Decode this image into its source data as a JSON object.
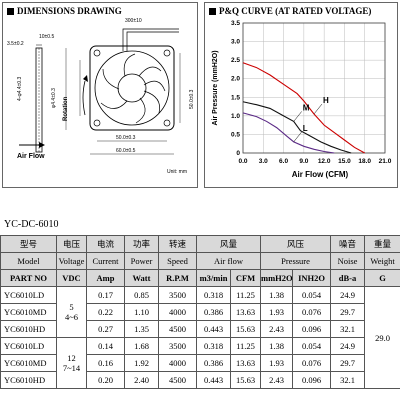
{
  "dimensions": {
    "title": "DIMENSIONS DRAWING",
    "lead_length": "300±10",
    "thickness": "10±0.5",
    "clearance": "3.5±0.2",
    "hole_spacing_v": "4-φ4.4±0.3",
    "hole_spacing_h": "φ4.4±0.3",
    "mount_v": "50.0±0.3",
    "mount_h": "50.0±0.3",
    "outer_v": "60.0±0.5",
    "outer_h": "60.0±0.5",
    "rotation_label": "Rotation",
    "airflow_label": "Air Flow",
    "unit_label": "Unit: mm"
  },
  "chart_data": {
    "type": "line",
    "title": "P&Q CURVE (AT RATED VOLTAGE)",
    "xlabel": "Air Flow (CFM)",
    "ylabel": "Air Pressure (mmH2O)",
    "xlim": [
      0,
      21
    ],
    "ylim": [
      0,
      3.5
    ],
    "xticks": [
      "0.0",
      "3.0",
      "6.0",
      "9.0",
      "12.0",
      "15.0",
      "18.0",
      "21.0"
    ],
    "yticks": [
      "0",
      "0.5",
      "1.0",
      "1.5",
      "2.0",
      "2.5",
      "3.0",
      "3.5"
    ],
    "grid": true,
    "series": [
      {
        "name": "H",
        "color": "#cc0000",
        "x": [
          0,
          2,
          4,
          6,
          8,
          9,
          10.5,
          12,
          13.5,
          15,
          16.5,
          18
        ],
        "y": [
          2.43,
          2.3,
          2.1,
          1.85,
          1.6,
          1.4,
          1.05,
          0.75,
          0.55,
          0.35,
          0.15,
          0
        ]
      },
      {
        "name": "M",
        "color": "#111111",
        "x": [
          0,
          2,
          4,
          6,
          7.5,
          8.5,
          10,
          11.5,
          13,
          14.5,
          16
        ],
        "y": [
          1.38,
          1.3,
          1.2,
          1.0,
          0.85,
          0.6,
          0.45,
          0.3,
          0.18,
          0.08,
          0
        ]
      },
      {
        "name": "L",
        "color": "#5b2a86",
        "x": [
          0,
          2,
          3.5,
          5,
          6.5,
          7.5,
          9,
          10.5,
          12,
          13.5
        ],
        "y": [
          1.08,
          0.98,
          0.85,
          0.68,
          0.45,
          0.3,
          0.18,
          0.1,
          0.04,
          0
        ]
      }
    ]
  },
  "model_code": "YC-DC-6010",
  "table": {
    "header_cn": [
      "型号",
      "电压",
      "电流",
      "功率",
      "转速",
      "风量",
      "风压",
      "噪音",
      "重量"
    ],
    "header_en": [
      "Model",
      "Voltage",
      "Current",
      "Power",
      "Speed",
      "Air flow",
      "Pressure",
      "Noise",
      "Weight"
    ],
    "units": [
      "PART NO",
      "VDC",
      "Amp",
      "Watt",
      "R.P.M",
      "m3/min",
      "CFM",
      "mmH2O",
      "INH2O",
      "dB-a",
      "G"
    ],
    "voltage_groups": [
      {
        "nominal": "5",
        "range": "4~6"
      },
      {
        "nominal": "12",
        "range": "7~14"
      }
    ],
    "weight": "29.0",
    "rows": [
      {
        "model": "YC6010LD",
        "current": "0.17",
        "power": "0.85",
        "speed": "3500",
        "m3min": "0.318",
        "cfm": "11.25",
        "mmh2o": "1.38",
        "inh2o": "0.054",
        "noise": "24.9"
      },
      {
        "model": "YC6010MD",
        "current": "0.22",
        "power": "1.10",
        "speed": "4000",
        "m3min": "0.386",
        "cfm": "13.63",
        "mmh2o": "1.93",
        "inh2o": "0.076",
        "noise": "29.7"
      },
      {
        "model": "YC6010HD",
        "current": "0.27",
        "power": "1.35",
        "speed": "4500",
        "m3min": "0.443",
        "cfm": "15.63",
        "mmh2o": "2.43",
        "inh2o": "0.096",
        "noise": "32.1"
      },
      {
        "model": "YC6010LD",
        "current": "0.14",
        "power": "1.68",
        "speed": "3500",
        "m3min": "0.318",
        "cfm": "11.25",
        "mmh2o": "1.38",
        "inh2o": "0.054",
        "noise": "24.9"
      },
      {
        "model": "YC6010MD",
        "current": "0.16",
        "power": "1.92",
        "speed": "4000",
        "m3min": "0.386",
        "cfm": "13.63",
        "mmh2o": "1.93",
        "inh2o": "0.076",
        "noise": "29.7"
      },
      {
        "model": "YC6010HD",
        "current": "0.20",
        "power": "2.40",
        "speed": "4500",
        "m3min": "0.443",
        "cfm": "15.63",
        "mmh2o": "2.43",
        "inh2o": "0.096",
        "noise": "32.1"
      }
    ]
  }
}
